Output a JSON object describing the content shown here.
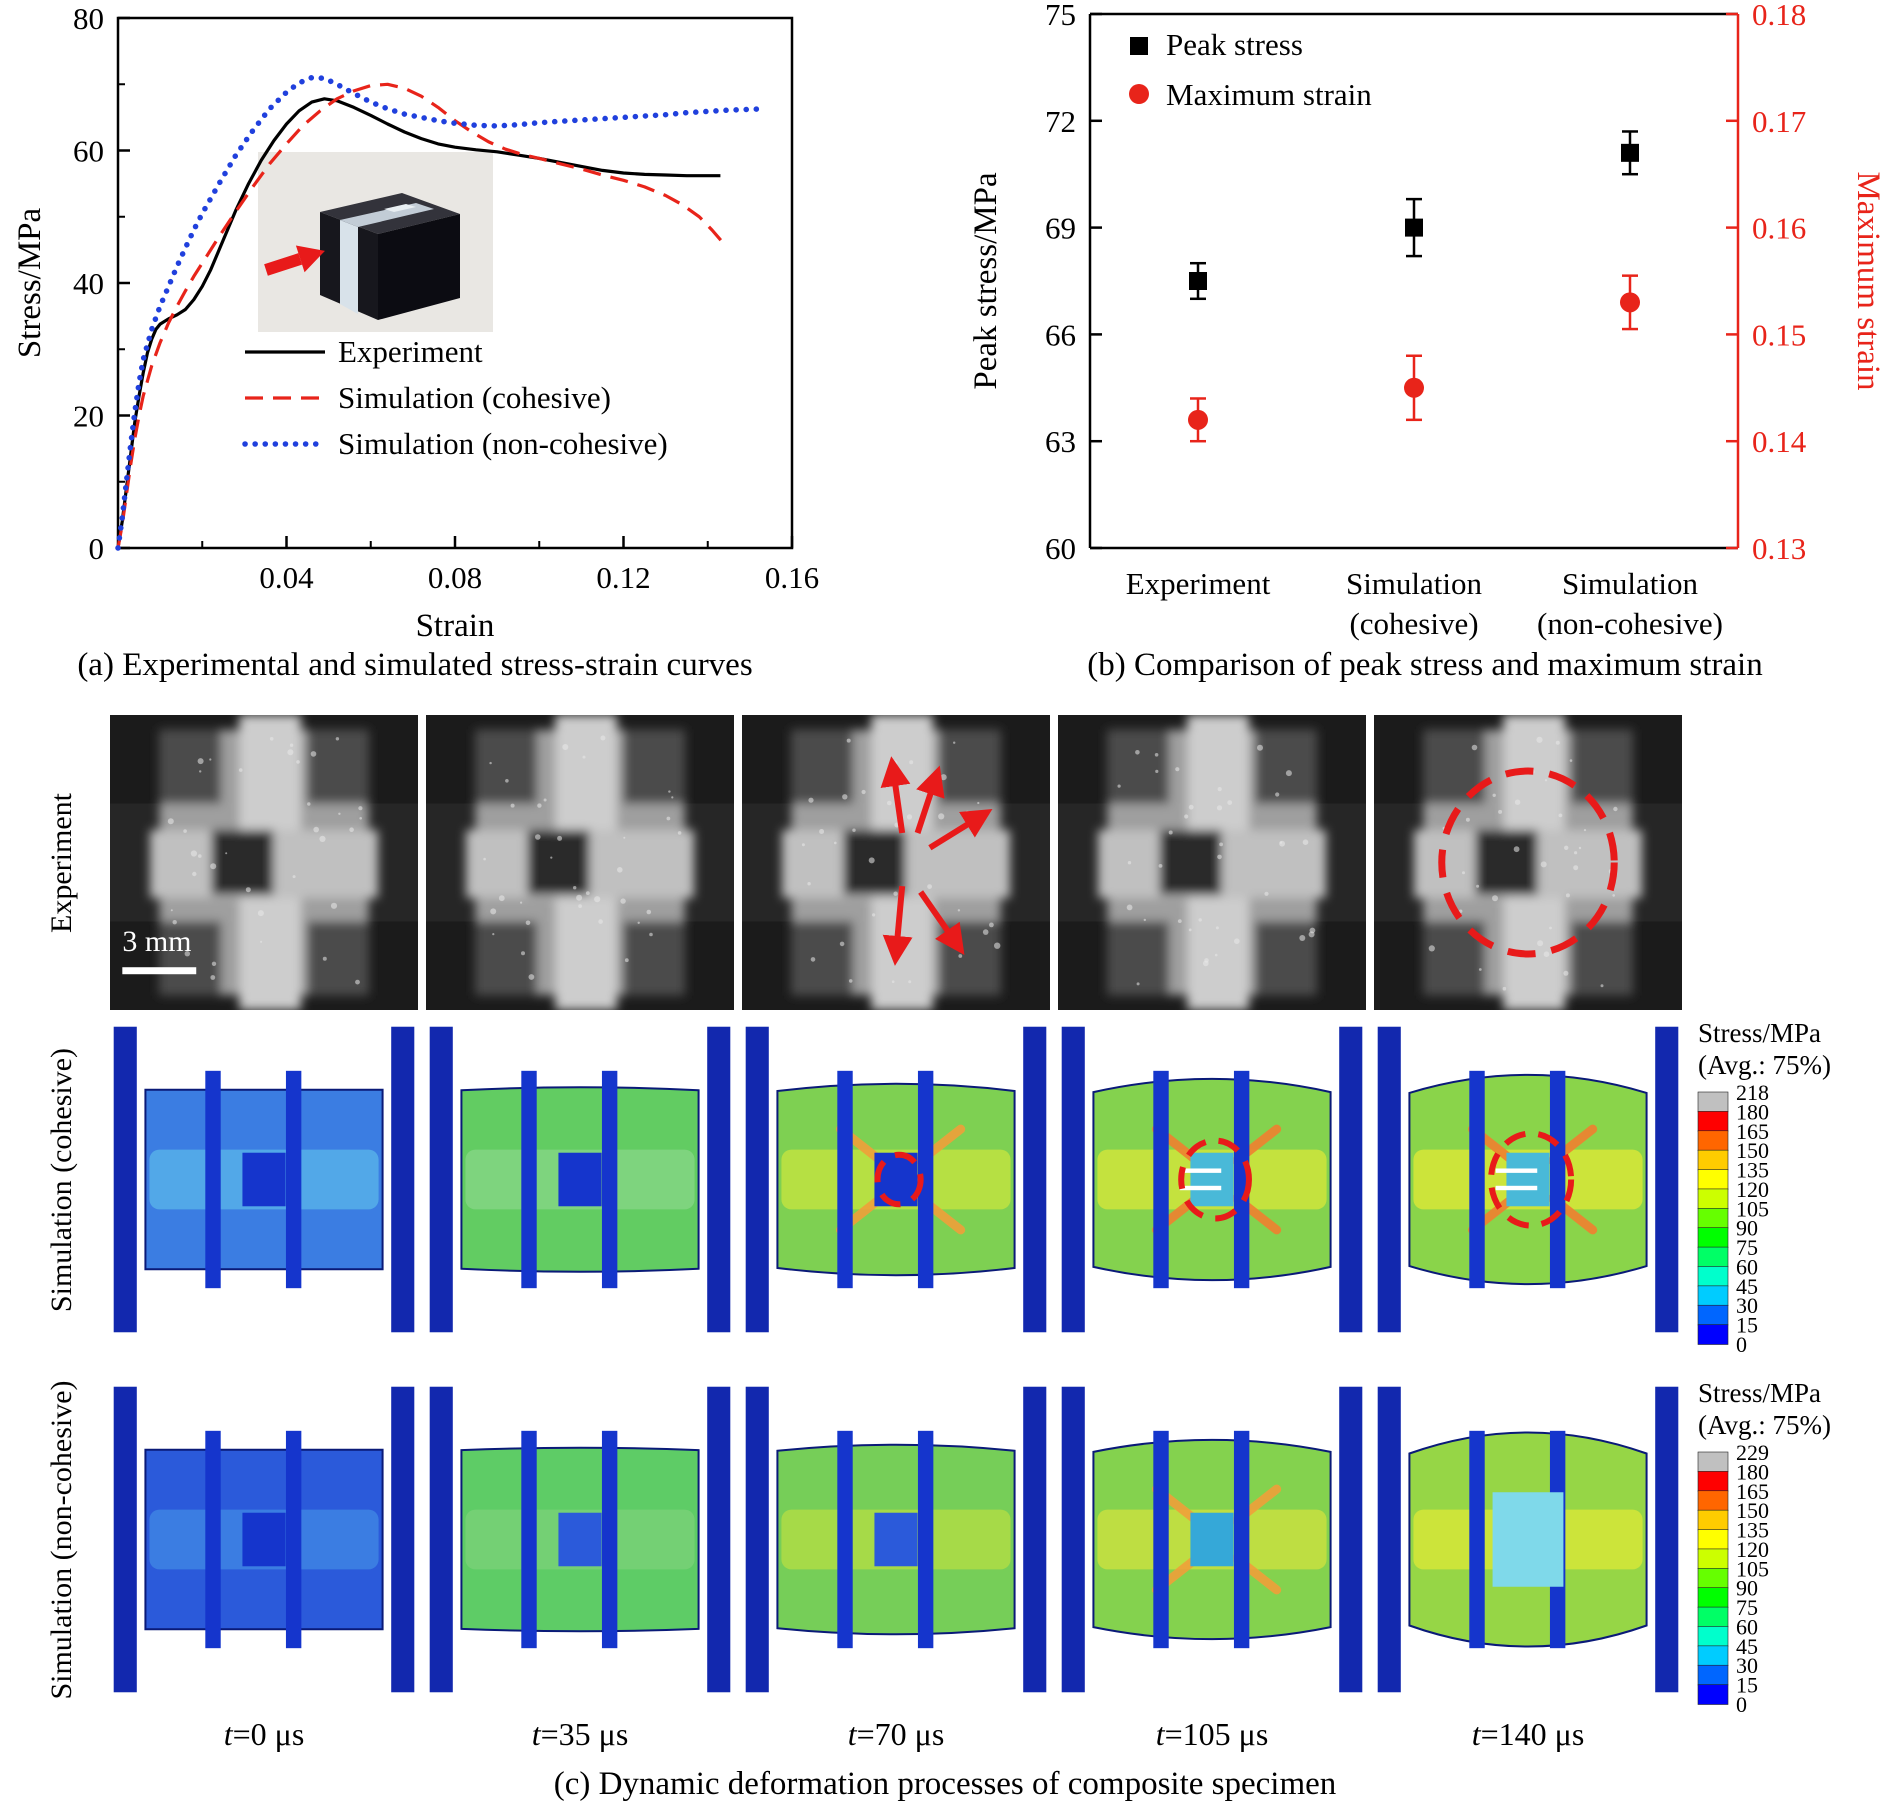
{
  "chart_data": [
    {
      "id": "stress-strain-curves",
      "type": "line",
      "title": "",
      "xlabel": "Strain",
      "ylabel": "Stress/MPa",
      "xlim": [
        0,
        0.16
      ],
      "ylim": [
        0,
        80
      ],
      "xticks": [
        "0.04",
        "0.08",
        "0.12",
        "0.16"
      ],
      "xminor": [
        0.02,
        0.06,
        0.1,
        0.14
      ],
      "yticks": [
        "0",
        "20",
        "40",
        "60",
        "80"
      ],
      "yminor": [
        10,
        30,
        50,
        70
      ],
      "grid": false,
      "legend_position": "inside-left-middle",
      "series": [
        {
          "name": "Experiment",
          "color": "#000000",
          "line": "solid",
          "points": [
            [
              0,
              0
            ],
            [
              0.001,
              4
            ],
            [
              0.002,
              9
            ],
            [
              0.003,
              14
            ],
            [
              0.004,
              19
            ],
            [
              0.005,
              23
            ],
            [
              0.006,
              26.5
            ],
            [
              0.007,
              29.5
            ],
            [
              0.008,
              31.5
            ],
            [
              0.009,
              33
            ],
            [
              0.01,
              33.8
            ],
            [
              0.012,
              34.6
            ],
            [
              0.014,
              35.2
            ],
            [
              0.016,
              36
            ],
            [
              0.018,
              37.5
            ],
            [
              0.02,
              39.5
            ],
            [
              0.022,
              42
            ],
            [
              0.025,
              46.5
            ],
            [
              0.028,
              51
            ],
            [
              0.031,
              55
            ],
            [
              0.034,
              58.5
            ],
            [
              0.037,
              61.5
            ],
            [
              0.04,
              64
            ],
            [
              0.043,
              66
            ],
            [
              0.046,
              67.3
            ],
            [
              0.049,
              67.8
            ],
            [
              0.052,
              67.5
            ],
            [
              0.056,
              66.5
            ],
            [
              0.06,
              65.3
            ],
            [
              0.064,
              64
            ],
            [
              0.068,
              62.8
            ],
            [
              0.072,
              61.8
            ],
            [
              0.076,
              61
            ],
            [
              0.08,
              60.5
            ],
            [
              0.085,
              60.1
            ],
            [
              0.09,
              59.8
            ],
            [
              0.095,
              59.3
            ],
            [
              0.1,
              58.8
            ],
            [
              0.105,
              58.2
            ],
            [
              0.11,
              57.6
            ],
            [
              0.115,
              57
            ],
            [
              0.12,
              56.6
            ],
            [
              0.125,
              56.4
            ],
            [
              0.13,
              56.3
            ],
            [
              0.135,
              56.2
            ],
            [
              0.14,
              56.2
            ],
            [
              0.143,
              56.2
            ]
          ]
        },
        {
          "name": "Simulation (cohesive)",
          "color": "#e8241a",
          "line": "dashed",
          "points": [
            [
              0,
              0
            ],
            [
              0.001,
              3.5
            ],
            [
              0.002,
              8
            ],
            [
              0.003,
              12.5
            ],
            [
              0.004,
              16.5
            ],
            [
              0.005,
              20
            ],
            [
              0.006,
              23
            ],
            [
              0.008,
              27.5
            ],
            [
              0.01,
              31
            ],
            [
              0.012,
              34
            ],
            [
              0.014,
              36.5
            ],
            [
              0.016,
              38.8
            ],
            [
              0.018,
              41
            ],
            [
              0.02,
              43
            ],
            [
              0.024,
              47
            ],
            [
              0.028,
              50.8
            ],
            [
              0.032,
              54.5
            ],
            [
              0.036,
              58
            ],
            [
              0.04,
              61
            ],
            [
              0.044,
              63.8
            ],
            [
              0.048,
              66
            ],
            [
              0.052,
              67.8
            ],
            [
              0.056,
              69
            ],
            [
              0.06,
              69.8
            ],
            [
              0.064,
              70
            ],
            [
              0.068,
              69.4
            ],
            [
              0.072,
              68.2
            ],
            [
              0.076,
              66.5
            ],
            [
              0.08,
              64.5
            ],
            [
              0.084,
              62.8
            ],
            [
              0.088,
              61.3
            ],
            [
              0.092,
              60.2
            ],
            [
              0.096,
              59.4
            ],
            [
              0.1,
              58.8
            ],
            [
              0.105,
              58
            ],
            [
              0.11,
              57.2
            ],
            [
              0.115,
              56.3
            ],
            [
              0.12,
              55.5
            ],
            [
              0.125,
              54.5
            ],
            [
              0.13,
              53.2
            ],
            [
              0.134,
              51.8
            ],
            [
              0.138,
              50
            ],
            [
              0.141,
              48
            ],
            [
              0.144,
              45.8
            ]
          ]
        },
        {
          "name": "Simulation (non-cohesive)",
          "color": "#2040dd",
          "line": "dotted",
          "points": [
            [
              0,
              0
            ],
            [
              0.001,
              4.5
            ],
            [
              0.002,
              10
            ],
            [
              0.003,
              15.5
            ],
            [
              0.004,
              20.5
            ],
            [
              0.005,
              25
            ],
            [
              0.006,
              28.5
            ],
            [
              0.008,
              33
            ],
            [
              0.01,
              36.5
            ],
            [
              0.012,
              39.5
            ],
            [
              0.014,
              42.5
            ],
            [
              0.016,
              45.3
            ],
            [
              0.018,
              48
            ],
            [
              0.02,
              50.5
            ],
            [
              0.024,
              55
            ],
            [
              0.028,
              59.3
            ],
            [
              0.032,
              63
            ],
            [
              0.036,
              66.3
            ],
            [
              0.04,
              68.8
            ],
            [
              0.043,
              70.2
            ],
            [
              0.046,
              71
            ],
            [
              0.049,
              70.9
            ],
            [
              0.052,
              70
            ],
            [
              0.056,
              68.6
            ],
            [
              0.06,
              67.3
            ],
            [
              0.064,
              66.3
            ],
            [
              0.068,
              65.5
            ],
            [
              0.072,
              65
            ],
            [
              0.076,
              64.5
            ],
            [
              0.08,
              64.1
            ],
            [
              0.085,
              63.8
            ],
            [
              0.09,
              63.7
            ],
            [
              0.095,
              63.9
            ],
            [
              0.1,
              64.2
            ],
            [
              0.105,
              64.4
            ],
            [
              0.11,
              64.6
            ],
            [
              0.115,
              64.8
            ],
            [
              0.12,
              65
            ],
            [
              0.125,
              65.2
            ],
            [
              0.13,
              65.4
            ],
            [
              0.135,
              65.7
            ],
            [
              0.14,
              65.9
            ],
            [
              0.145,
              66.1
            ],
            [
              0.15,
              66.2
            ],
            [
              0.153,
              66.3
            ]
          ]
        }
      ]
    },
    {
      "id": "peak-stress-max-strain",
      "type": "scatter",
      "categories": [
        [
          "Experiment"
        ],
        [
          "Simulation",
          "(cohesive)"
        ],
        [
          "Simulation",
          "(non-cohesive)"
        ]
      ],
      "left_axis": {
        "label": "Peak stress/MPa",
        "lim": [
          60,
          75
        ],
        "ticks": [
          "60",
          "63",
          "66",
          "69",
          "72",
          "75"
        ],
        "color": "#000000"
      },
      "right_axis": {
        "label": "Maximum strain",
        "lim": [
          0.13,
          0.18
        ],
        "ticks": [
          "0.13",
          "0.14",
          "0.15",
          "0.16",
          "0.17",
          "0.18"
        ],
        "color": "#e8241a"
      },
      "legend_position": "inside-top-left",
      "series": [
        {
          "name": "Peak stress",
          "axis": "left",
          "marker": "square",
          "color": "#000000",
          "values": [
            67.5,
            69.0,
            71.1
          ],
          "errors": [
            0.5,
            0.8,
            0.6
          ]
        },
        {
          "name": "Maximum strain",
          "axis": "right",
          "marker": "circle",
          "color": "#e8241a",
          "values": [
            0.142,
            0.145,
            0.153
          ],
          "errors": [
            0.002,
            0.003,
            0.0025
          ]
        }
      ]
    }
  ],
  "panel_a": {
    "caption": "(a) Experimental and simulated stress-strain curves"
  },
  "panel_b": {
    "caption": "(b) Comparison of peak stress and maximum strain"
  },
  "panel_c": {
    "caption": "(c) Dynamic deformation processes of composite specimen",
    "row_labels": [
      "Experiment",
      "Simulation (cohesive)",
      "Simulation (non-cohesive)"
    ],
    "time_labels": [
      "t=0 μs",
      "t=35 μs",
      "t=70 μs",
      "t=105 μs",
      "t=140 μs"
    ],
    "annotation_color": "#e81a1a",
    "experiment_row": {
      "scale_bar_label": "3 mm",
      "frames": [
        {
          "scalebar": true
        },
        {},
        {
          "arrows": true
        },
        {},
        {
          "ellipse": true
        }
      ]
    },
    "simulation_rows": [
      {
        "name": "cohesive",
        "colorbar": {
          "title": "Stress/MPa",
          "subtitle": "(Avg.: 75%)",
          "labels": [
            "218",
            "180",
            "165",
            "150",
            "135",
            "120",
            "105",
            "90",
            "75",
            "60",
            "45",
            "30",
            "15",
            "0"
          ],
          "colors": [
            "#c0c0c0",
            "#ff0000",
            "#ff6600",
            "#ffcc00",
            "#ffff00",
            "#ccff00",
            "#66ff00",
            "#00ff00",
            "#00ff66",
            "#00ffcc",
            "#00ccff",
            "#0066ff",
            "#0000ff"
          ]
        },
        "cells": [
          {
            "base": "#3b7de2",
            "mid": "#52a8e8",
            "center": "#1535cc",
            "bulge": 0
          },
          {
            "base": "#62cc62",
            "mid": "#7ed47e",
            "center": "#1535cc",
            "bulge": 0.05
          },
          {
            "base": "#7ed052",
            "mid": "#b6e043",
            "center": "#1535cc",
            "accent": "#f0a03a",
            "bulge": 0.12,
            "circle": 0.07
          },
          {
            "base": "#84d24e",
            "mid": "#c4e23e",
            "center": "#49b9d8",
            "accent": "#f08030",
            "bulge": 0.22,
            "circle": 0.11,
            "crack": true
          },
          {
            "base": "#8ad44a",
            "mid": "#cce43a",
            "center": "#49b9d8",
            "accent": "#f08030",
            "bulge": 0.3,
            "circle": 0.13,
            "crack": true
          }
        ]
      },
      {
        "name": "non-cohesive",
        "colorbar": {
          "title": "Stress/MPa",
          "subtitle": "(Avg.: 75%)",
          "labels": [
            "229",
            "180",
            "165",
            "150",
            "135",
            "120",
            "105",
            "90",
            "75",
            "60",
            "45",
            "30",
            "15",
            "0"
          ],
          "colors": [
            "#c0c0c0",
            "#ff0000",
            "#ff6600",
            "#ffcc00",
            "#ffff00",
            "#ccff00",
            "#66ff00",
            "#00ff00",
            "#00ff66",
            "#00ffcc",
            "#00ccff",
            "#0066ff",
            "#0000ff"
          ]
        },
        "cells": [
          {
            "base": "#2b5ada",
            "mid": "#3b7de2",
            "center": "#1535cc",
            "bulge": 0
          },
          {
            "base": "#5ecc66",
            "mid": "#74d074",
            "center": "#2b5ada",
            "bulge": 0.04
          },
          {
            "base": "#76ce58",
            "mid": "#a6da48",
            "center": "#2b5ada",
            "bulge": 0.1
          },
          {
            "base": "#84d24e",
            "mid": "#bede42",
            "center": "#35a8d8",
            "accent": "#f0a03a",
            "bulge": 0.2
          },
          {
            "base": "#96d646",
            "mid": "#cce43a",
            "center": "#7fd9ea",
            "bulge": 0.35,
            "centerSize": [
              0.23,
              0.3
            ]
          }
        ]
      }
    ]
  }
}
